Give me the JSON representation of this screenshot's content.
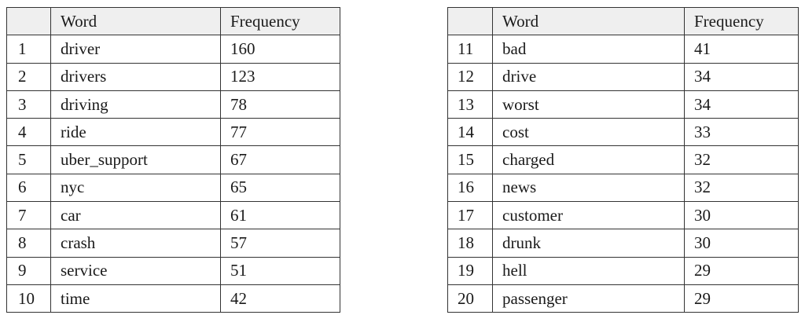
{
  "tables": [
    {
      "headers": [
        "",
        "Word",
        "Frequency"
      ],
      "rows": [
        [
          "1",
          "driver",
          "160"
        ],
        [
          "2",
          "drivers",
          "123"
        ],
        [
          "3",
          "driving",
          "78"
        ],
        [
          "4",
          "ride",
          "77"
        ],
        [
          "5",
          "uber_support",
          "67"
        ],
        [
          "6",
          "nyc",
          "65"
        ],
        [
          "7",
          "car",
          "61"
        ],
        [
          "8",
          "crash",
          "57"
        ],
        [
          "9",
          "service",
          "51"
        ],
        [
          "10",
          "time",
          "42"
        ]
      ]
    },
    {
      "headers": [
        "",
        "Word",
        "Frequency"
      ],
      "rows": [
        [
          "11",
          "bad",
          "41"
        ],
        [
          "12",
          "drive",
          "34"
        ],
        [
          "13",
          "worst",
          "34"
        ],
        [
          "14",
          "cost",
          "33"
        ],
        [
          "15",
          "charged",
          "32"
        ],
        [
          "16",
          "news",
          "32"
        ],
        [
          "17",
          "customer",
          "30"
        ],
        [
          "18",
          "drunk",
          "30"
        ],
        [
          "19",
          "hell",
          "29"
        ],
        [
          "20",
          "passenger",
          "29"
        ]
      ]
    }
  ],
  "colors": {
    "header_background": "#efefef",
    "border": "#333333",
    "text": "#1a1a1a"
  }
}
